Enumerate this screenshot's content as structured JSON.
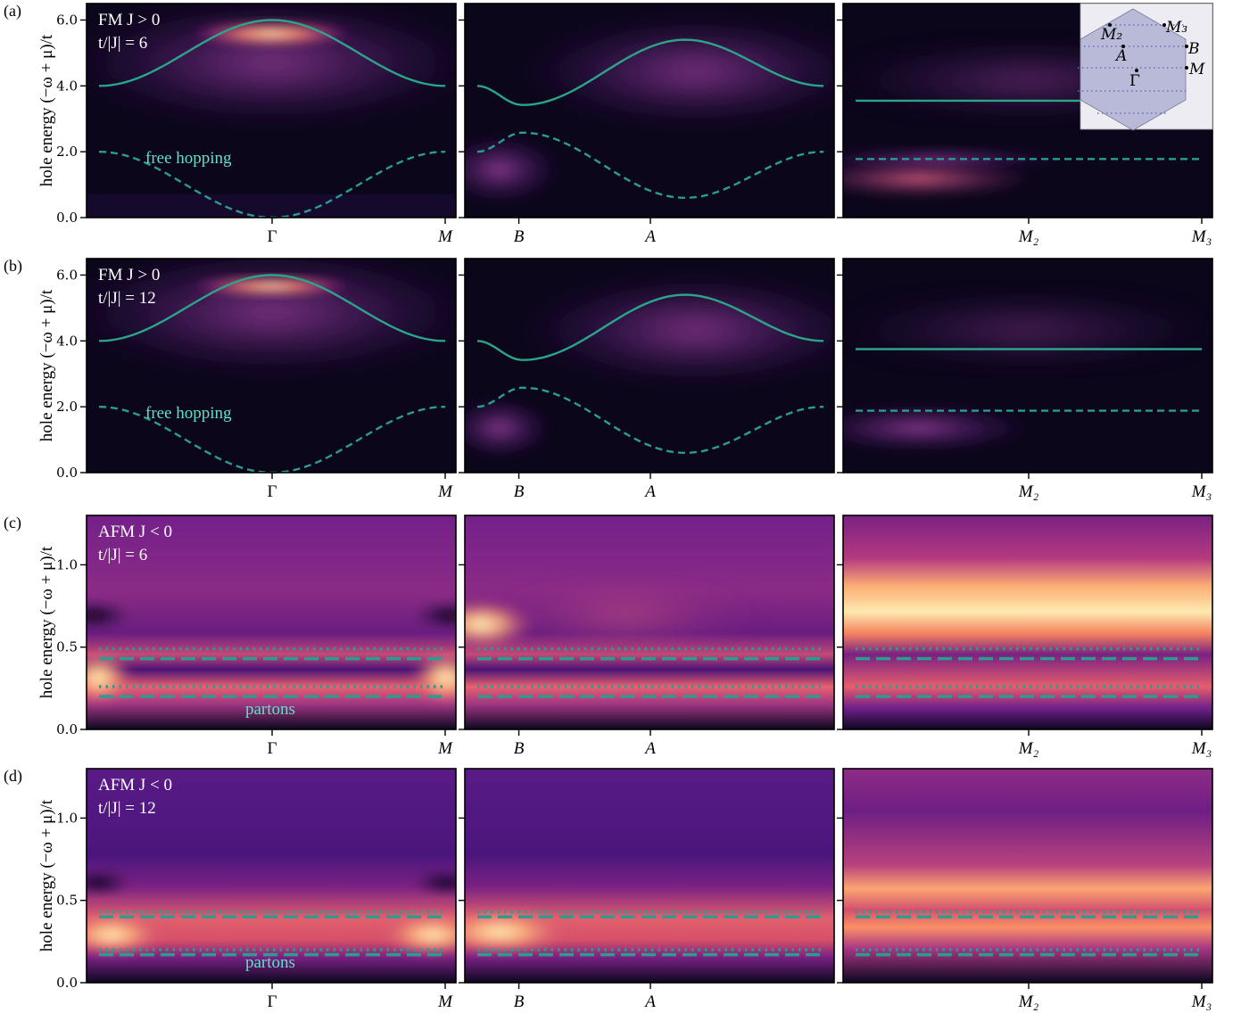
{
  "figure": {
    "ylabel": "hole energy (−ω + μ)/t",
    "annotation_free": "free hopping",
    "annotation_partons": "partons",
    "colors": {
      "teal_solid": "#2aa58a",
      "teal_dashed": "#2a9d8f",
      "annotation_text": "#5fe0c8",
      "inset_bg": "#ececf2",
      "inset_hex": "#b9b9d8",
      "inset_dots": "#7d7dc8"
    }
  },
  "chart_data": [
    {
      "type": "heatmap",
      "panel": "(a)",
      "label_line1": "FM J > 0",
      "label_line2": "t/|J| = 6",
      "ylim": [
        0,
        6.5
      ],
      "yticks": [
        "0.0",
        "2.0",
        "4.0",
        "6.0"
      ],
      "ytick_values": [
        0,
        2,
        4,
        6
      ],
      "subplots": [
        {
          "xticks": [
            "Γ",
            "M"
          ],
          "xtick_positions": [
            0.5,
            1.0
          ]
        },
        {
          "xticks": [
            "B",
            "A"
          ],
          "xtick_positions": [
            0.12,
            0.5
          ]
        },
        {
          "xticks": [
            "M₂",
            "M₃"
          ],
          "xtick_positions": [
            0.5,
            1.0
          ]
        }
      ],
      "solid_line": {
        "sub1": [
          [
            0,
            4.0
          ],
          [
            0.5,
            6.0
          ],
          [
            1,
            4.0
          ]
        ],
        "sub2": [
          [
            0,
            4.0
          ],
          [
            0.13,
            3.42
          ],
          [
            0.6,
            5.4
          ],
          [
            1,
            4.0
          ]
        ],
        "sub3_flat": 3.55
      },
      "dashed_line": {
        "sub1": [
          [
            0,
            2.0
          ],
          [
            0.5,
            0.0
          ],
          [
            1,
            2.0
          ]
        ],
        "sub2": [
          [
            0,
            2.0
          ],
          [
            0.13,
            2.58
          ],
          [
            0.6,
            0.6
          ],
          [
            1,
            2.0
          ]
        ],
        "sub3_flat": 1.78
      }
    },
    {
      "type": "heatmap",
      "panel": "(b)",
      "label_line1": "FM J > 0",
      "label_line2": "t/|J| = 12",
      "ylim": [
        0,
        6.5
      ],
      "yticks": [
        "0.0",
        "2.0",
        "4.0",
        "6.0"
      ],
      "ytick_values": [
        0,
        2,
        4,
        6
      ],
      "subplots": [
        {
          "xticks": [
            "Γ",
            "M"
          ],
          "xtick_positions": [
            0.5,
            1.0
          ]
        },
        {
          "xticks": [
            "B",
            "A"
          ],
          "xtick_positions": [
            0.12,
            0.5
          ]
        },
        {
          "xticks": [
            "M₂",
            "M₃"
          ],
          "xtick_positions": [
            0.5,
            1.0
          ]
        }
      ],
      "solid_line": {
        "sub1": [
          [
            0,
            4.0
          ],
          [
            0.5,
            6.0
          ],
          [
            1,
            4.0
          ]
        ],
        "sub2": [
          [
            0,
            4.0
          ],
          [
            0.13,
            3.42
          ],
          [
            0.6,
            5.4
          ],
          [
            1,
            4.0
          ]
        ],
        "sub3_flat": 3.75
      },
      "dashed_line": {
        "sub1": [
          [
            0,
            2.0
          ],
          [
            0.5,
            0.0
          ],
          [
            1,
            2.0
          ]
        ],
        "sub2": [
          [
            0,
            2.0
          ],
          [
            0.13,
            2.58
          ],
          [
            0.6,
            0.6
          ],
          [
            1,
            2.0
          ]
        ],
        "sub3_flat": 1.88
      }
    },
    {
      "type": "heatmap",
      "panel": "(c)",
      "label_line1": "AFM J < 0",
      "label_line2": "t/|J| = 6",
      "ylim": [
        0,
        1.3
      ],
      "yticks": [
        "0.0",
        "0.5",
        "1.0"
      ],
      "ytick_values": [
        0,
        0.5,
        1.0
      ],
      "subplots": [
        {
          "xticks": [
            "Γ",
            "M"
          ],
          "xtick_positions": [
            0.5,
            1.0
          ]
        },
        {
          "xticks": [
            "B",
            "A"
          ],
          "xtick_positions": [
            0.12,
            0.5
          ]
        },
        {
          "xticks": [
            "M₂",
            "M₃"
          ],
          "xtick_positions": [
            0.5,
            1.0
          ]
        }
      ],
      "dotted_lines": [
        0.49,
        0.26
      ],
      "dashed_lines": [
        0.43,
        0.2
      ]
    },
    {
      "type": "heatmap",
      "panel": "(d)",
      "label_line1": "AFM J < 0",
      "label_line2": "t/|J| = 12",
      "ylim": [
        0,
        1.3
      ],
      "yticks": [
        "0.0",
        "0.5",
        "1.0"
      ],
      "ytick_values": [
        0,
        0.5,
        1.0
      ],
      "subplots": [
        {
          "xticks": [
            "Γ",
            "M"
          ],
          "xtick_positions": [
            0.5,
            1.0
          ]
        },
        {
          "xticks": [
            "B",
            "A"
          ],
          "xtick_positions": [
            0.12,
            0.5
          ]
        },
        {
          "xticks": [
            "M₂",
            "M₃"
          ],
          "xtick_positions": [
            0.5,
            1.0
          ]
        }
      ],
      "dotted_lines": [
        0.43,
        0.2
      ],
      "dashed_lines": [
        0.4,
        0.17
      ]
    }
  ],
  "inset": {
    "labels": [
      "M₂",
      "M₃",
      "B",
      "A",
      "M",
      "Γ"
    ]
  }
}
